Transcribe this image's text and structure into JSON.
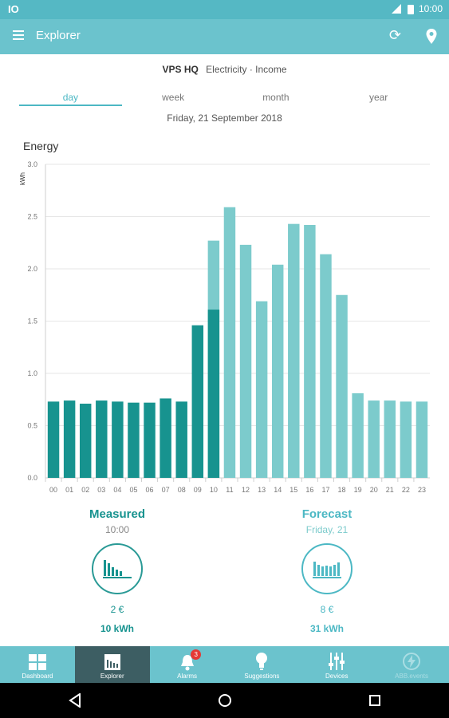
{
  "status": {
    "left_icon": "IO",
    "time": "10:00"
  },
  "appbar": {
    "title": "Explorer",
    "menu_icon": "hamburger-icon",
    "refresh_icon": "refresh-icon",
    "location_icon": "location-pin-icon"
  },
  "site": {
    "name": "VPS HQ",
    "meter": "Electricity · Income"
  },
  "tabs": [
    {
      "label": "day"
    },
    {
      "label": "week"
    },
    {
      "label": "month"
    },
    {
      "label": "year"
    }
  ],
  "date": "Friday, 21 September 2018",
  "chart_title": "Energy",
  "chart_data": {
    "type": "bar",
    "ylabel": "kWh",
    "ylim": [
      0,
      3.0
    ],
    "yticks": [
      "0.0",
      "0.5",
      "1.0",
      "1.5",
      "2.0",
      "2.5",
      "3.0"
    ],
    "categories": [
      "00",
      "01",
      "02",
      "03",
      "04",
      "05",
      "06",
      "07",
      "08",
      "09",
      "10",
      "11",
      "12",
      "13",
      "14",
      "15",
      "16",
      "17",
      "18",
      "19",
      "20",
      "21",
      "22",
      "23"
    ],
    "series": [
      {
        "values": [
          0.73,
          0.74,
          0.71,
          0.74,
          0.73,
          0.72,
          0.72,
          0.76,
          0.73,
          1.46,
          1.61,
          null,
          null,
          null,
          null,
          null,
          null,
          null,
          null,
          null,
          null,
          null,
          null,
          null
        ]
      },
      {
        "values": [
          null,
          null,
          null,
          null,
          null,
          null,
          null,
          null,
          null,
          null,
          2.27,
          2.59,
          2.23,
          1.69,
          2.04,
          2.43,
          2.42,
          2.14,
          1.75,
          0.81,
          0.74,
          0.74,
          0.73,
          0.73
        ]
      }
    ],
    "colors": {
      "measured": "#17938f",
      "forecast": "#7ccbcc",
      "grid": "#e6e6e6",
      "axis": "#777777"
    }
  },
  "measured": {
    "title": "Measured",
    "subtitle": "10:00",
    "cost": "2 €",
    "energy": "10 kWh",
    "color": "#17938f"
  },
  "forecast": {
    "title": "Forecast",
    "subtitle": "Friday, 21",
    "cost": "8 €",
    "energy": "31 kWh",
    "color": "#4cb8c4"
  },
  "bottom_nav": [
    {
      "label": "Dashboard",
      "icon": "dashboard-icon"
    },
    {
      "label": "Explorer",
      "icon": "explorer-icon"
    },
    {
      "label": "Alarms",
      "icon": "bell-icon",
      "badge": "3"
    },
    {
      "label": "Suggestions",
      "icon": "lightbulb-icon"
    },
    {
      "label": "Devices",
      "icon": "sliders-icon"
    },
    {
      "label": "ABB.events",
      "icon": "lightning-icon"
    }
  ]
}
